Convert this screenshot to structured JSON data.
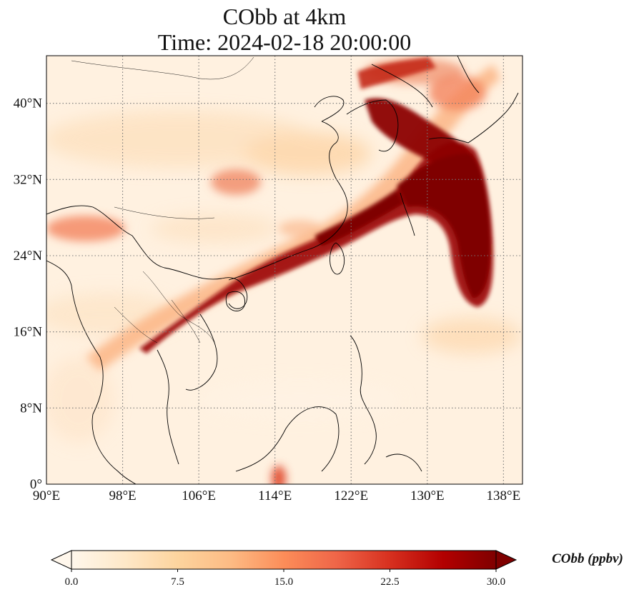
{
  "title": {
    "line1": "CObb at 4km",
    "line2": "Time: 2024-02-18 20:00:00"
  },
  "map": {
    "extent": {
      "lon": [
        90,
        140
      ],
      "lat": [
        0,
        45
      ]
    },
    "grid": "dotted",
    "lon_ticks": [
      {
        "value": 90,
        "label": "90°E"
      },
      {
        "value": 98,
        "label": "98°E"
      },
      {
        "value": 106,
        "label": "106°E"
      },
      {
        "value": 114,
        "label": "114°E"
      },
      {
        "value": 122,
        "label": "122°E"
      },
      {
        "value": 130,
        "label": "130°E"
      },
      {
        "value": 138,
        "label": "138°E"
      }
    ],
    "lat_ticks": [
      {
        "value": 0,
        "label": "0°"
      },
      {
        "value": 8,
        "label": "8°N"
      },
      {
        "value": 16,
        "label": "16°N"
      },
      {
        "value": 24,
        "label": "24°N"
      },
      {
        "value": 32,
        "label": "32°N"
      },
      {
        "value": 40,
        "label": "40°N"
      }
    ]
  },
  "colorbar": {
    "label": "CObb (ppbv)",
    "range": [
      0,
      30
    ],
    "extend": "both",
    "colormap": [
      "#fff7ec",
      "#fee8c8",
      "#fdd49e",
      "#fdbb84",
      "#fc8d59",
      "#ef6548",
      "#d7301f",
      "#b30000",
      "#7f0000"
    ],
    "ticks": [
      {
        "value": 0,
        "label": "0.0"
      },
      {
        "value": 7.5,
        "label": "7.5"
      },
      {
        "value": 15,
        "label": "15.0"
      },
      {
        "value": 22.5,
        "label": "22.5"
      },
      {
        "value": 30,
        "label": "30.0"
      }
    ]
  }
}
